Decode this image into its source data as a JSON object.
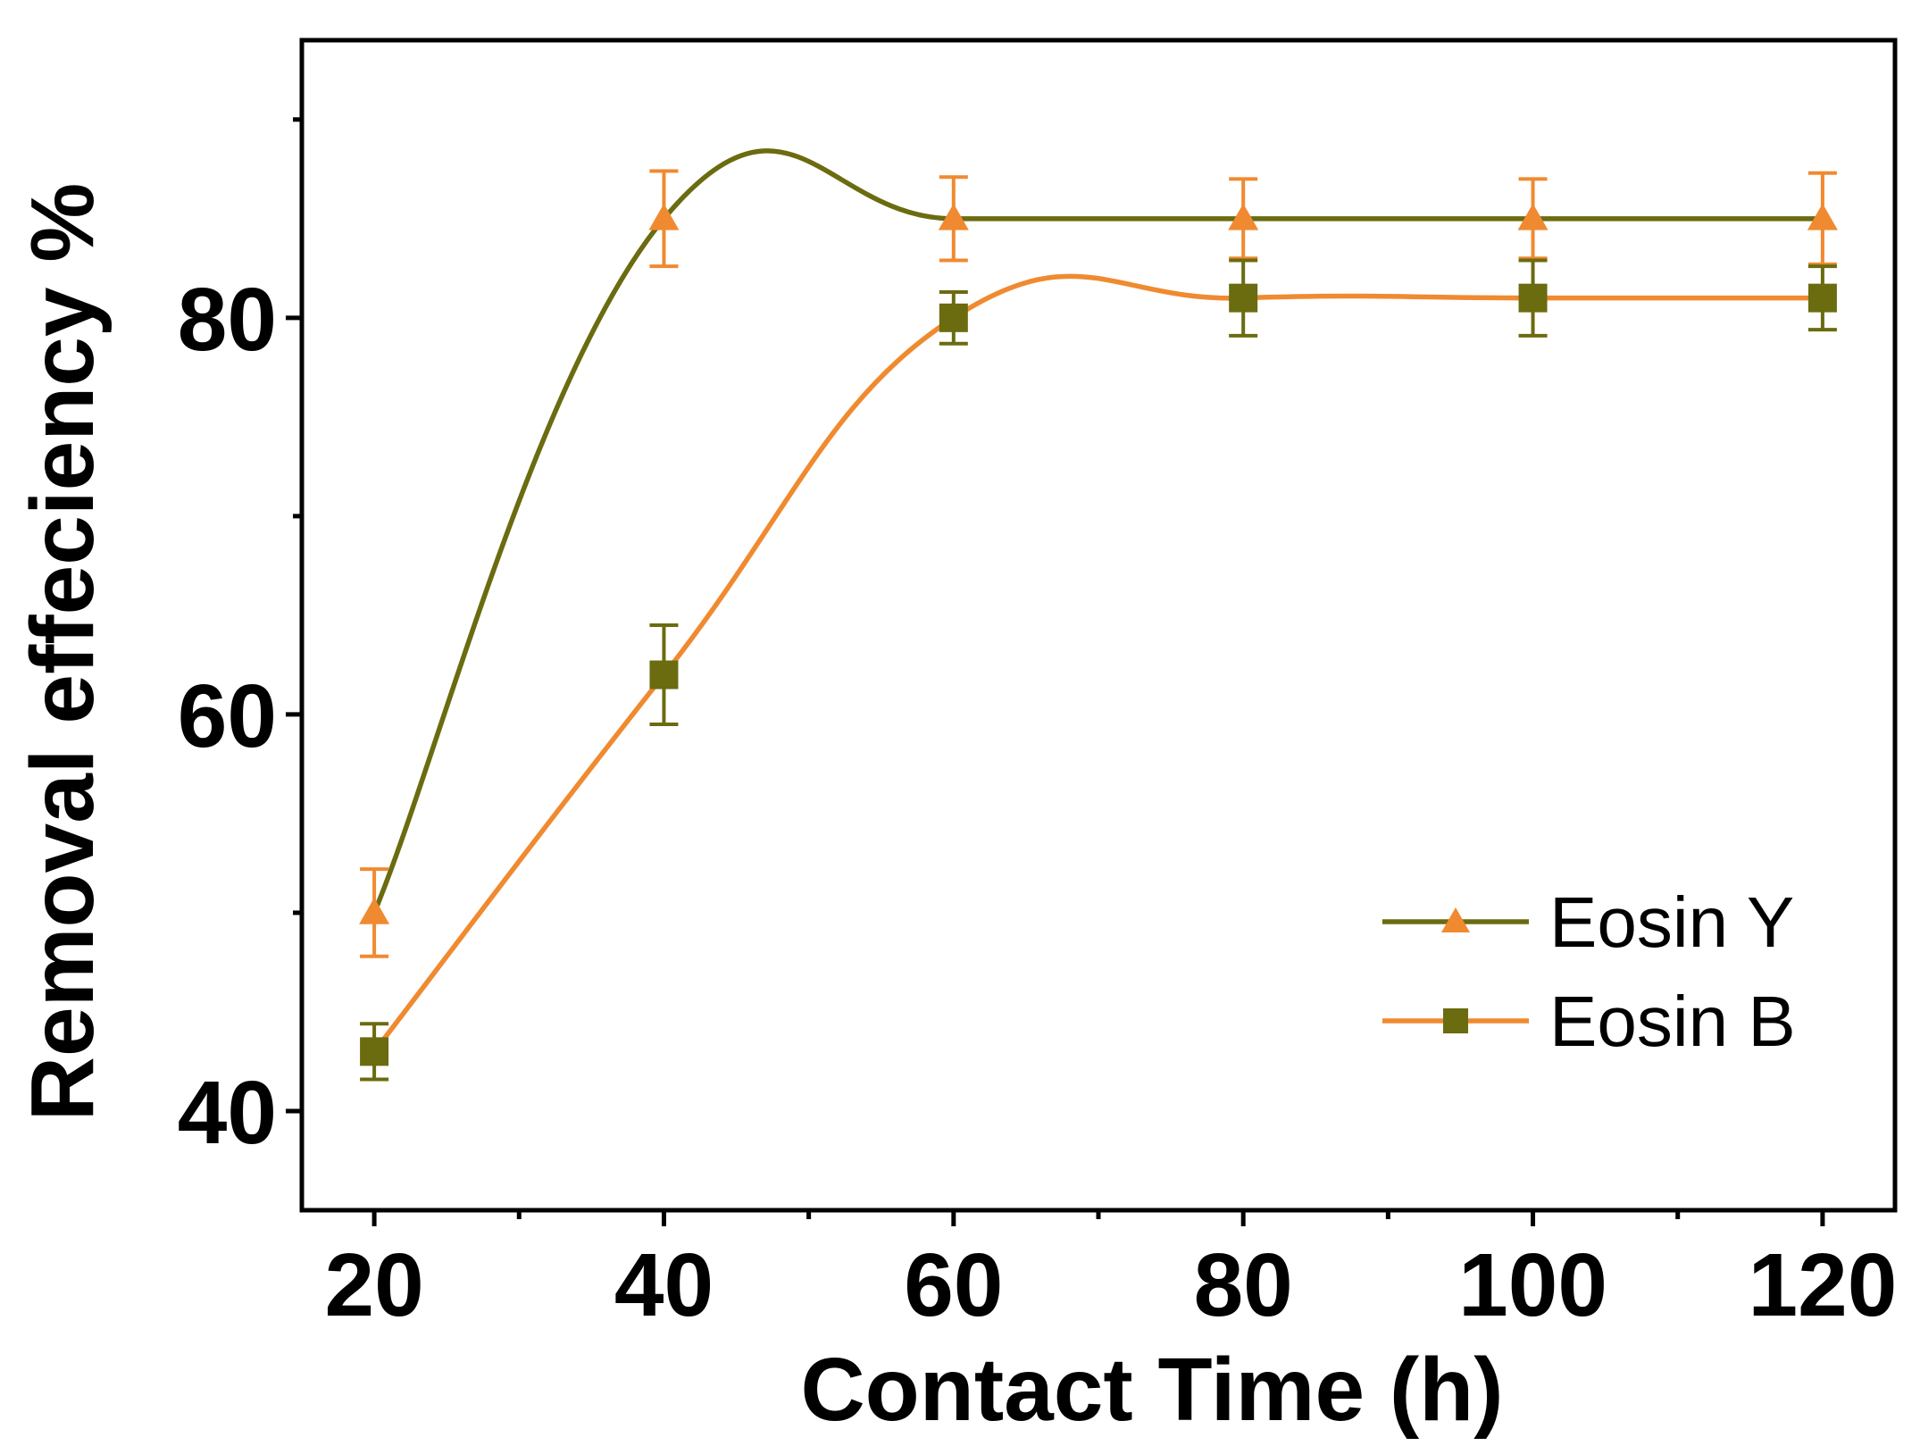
{
  "chart_data": {
    "type": "line",
    "title": "",
    "xlabel": "Contact Time (h)",
    "ylabel": "Removal effeciency %",
    "xlim": [
      15,
      125
    ],
    "ylim": [
      35,
      94
    ],
    "x_ticks": [
      20,
      40,
      60,
      80,
      100,
      120
    ],
    "x_minor_ticks": [
      30,
      50,
      70,
      90,
      110
    ],
    "y_ticks": [
      40,
      60,
      80
    ],
    "y_minor_ticks": [
      50,
      70,
      90
    ],
    "legend_position": "bottom-right",
    "series": [
      {
        "name": "Eosin Y",
        "marker": "triangle",
        "line_color": "#6b6b10",
        "marker_color": "#f08a30",
        "x": [
          20,
          40,
          60,
          80,
          100,
          120
        ],
        "y": [
          50,
          85,
          85,
          85,
          85,
          85
        ],
        "err": [
          2.2,
          2.4,
          2.1,
          2.0,
          2.0,
          2.3
        ]
      },
      {
        "name": "Eosin B",
        "marker": "square",
        "line_color": "#f08a30",
        "marker_color": "#6b6b10",
        "x": [
          20,
          40,
          60,
          80,
          100,
          120
        ],
        "y": [
          43,
          62,
          80,
          81,
          81,
          81
        ],
        "err": [
          1.4,
          2.5,
          1.3,
          1.9,
          1.9,
          1.6
        ]
      }
    ]
  }
}
